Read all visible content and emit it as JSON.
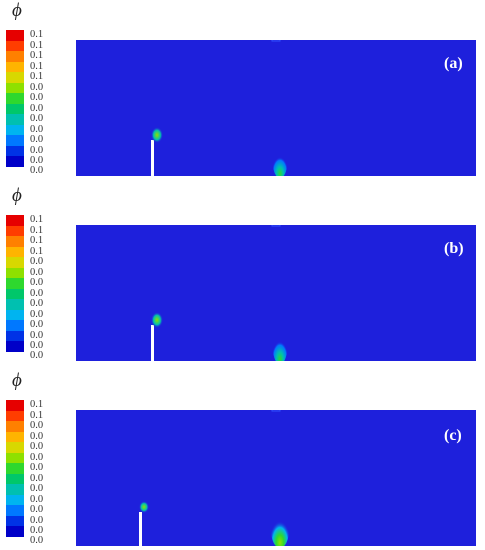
{
  "colorbar": {
    "symbol": "ϕ",
    "colors": [
      "#e60000",
      "#ff3d00",
      "#ff8000",
      "#ffb400",
      "#d8d800",
      "#8ee000",
      "#2ed82e",
      "#00c76a",
      "#00c0b0",
      "#00b4f0",
      "#0078ff",
      "#0032e6",
      "#0000c8"
    ]
  },
  "panels": [
    {
      "label": "(a)",
      "ticks": [
        "0.1",
        "0.1",
        "0.1",
        "0.1",
        "0.1",
        "0.0",
        "0.0",
        "0.0",
        "0.0",
        "0.0",
        "0.0",
        "0.0",
        "0.0"
      ]
    },
    {
      "label": "(b)",
      "ticks": [
        "0.1",
        "0.1",
        "0.1",
        "0.1",
        "0.0",
        "0.0",
        "0.0",
        "0.0",
        "0.0",
        "0.0",
        "0.0",
        "0.0",
        "0.0"
      ]
    },
    {
      "label": "(c)",
      "ticks": [
        "0.1",
        "0.1",
        "0.0",
        "0.0",
        "0.0",
        "0.0",
        "0.0",
        "0.0",
        "0.0",
        "0.0",
        "0.0",
        "0.0",
        "0.0"
      ]
    }
  ],
  "field_color": "#1e20dc"
}
